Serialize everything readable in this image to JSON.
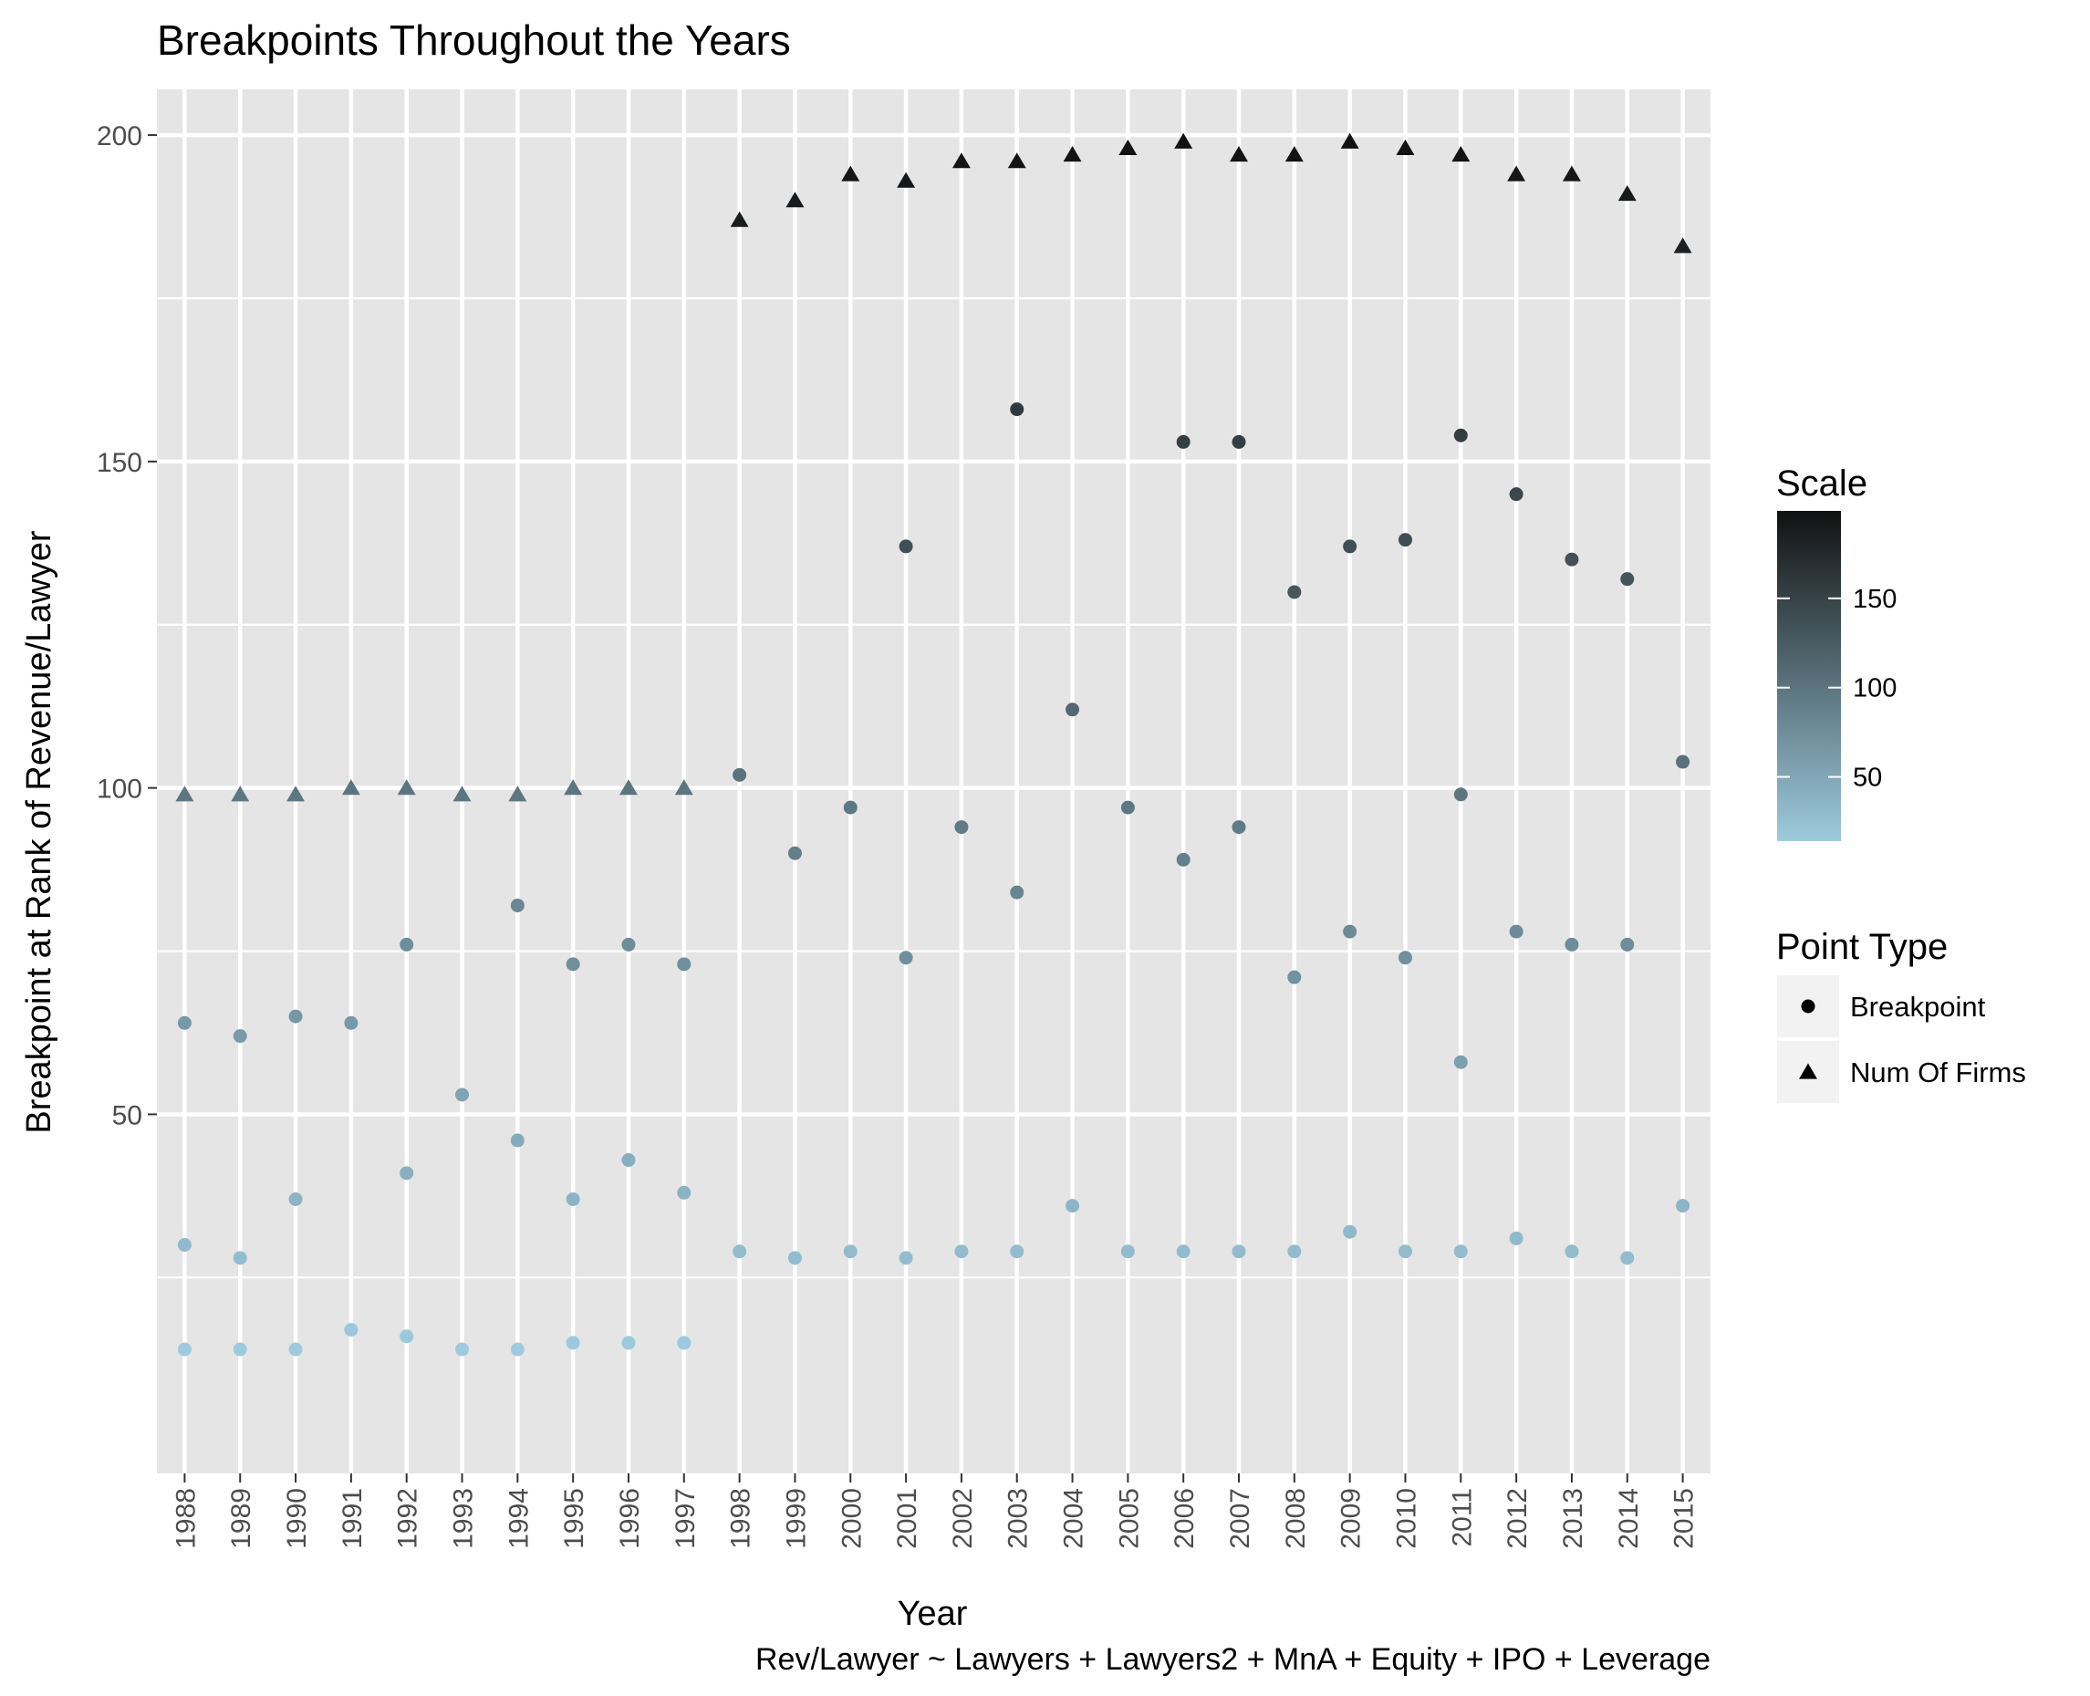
{
  "chart_data": {
    "type": "scatter",
    "title": "Breakpoints Throughout the Years",
    "xlabel": "Year",
    "ylabel": "Breakpoint at Rank of Revenue/Lawyer",
    "caption": "Rev/Lawyer ~ Lawyers + Lawyers2 + MnA + Equity + IPO + Leverage",
    "ylim": [
      -5,
      207
    ],
    "yticks": [
      50,
      100,
      150,
      200
    ],
    "grid": true,
    "legend_position": "right",
    "categories": [
      "1988",
      "1989",
      "1990",
      "1991",
      "1992",
      "1993",
      "1994",
      "1995",
      "1996",
      "1997",
      "1998",
      "1999",
      "2000",
      "2001",
      "2002",
      "2003",
      "2004",
      "2005",
      "2006",
      "2007",
      "2008",
      "2009",
      "2010",
      "2011",
      "2012",
      "2013",
      "2014",
      "2015"
    ],
    "breakpoints": [
      {
        "year": "1988",
        "values": [
          14,
          30,
          64
        ]
      },
      {
        "year": "1989",
        "values": [
          14,
          28,
          62
        ]
      },
      {
        "year": "1990",
        "values": [
          14,
          37,
          65
        ]
      },
      {
        "year": "1991",
        "values": [
          17,
          64
        ]
      },
      {
        "year": "1992",
        "values": [
          16,
          41,
          76
        ]
      },
      {
        "year": "1993",
        "values": [
          14,
          53
        ]
      },
      {
        "year": "1994",
        "values": [
          14,
          46,
          82
        ]
      },
      {
        "year": "1995",
        "values": [
          15,
          37,
          73
        ]
      },
      {
        "year": "1996",
        "values": [
          15,
          43,
          76
        ]
      },
      {
        "year": "1997",
        "values": [
          15,
          38,
          73
        ]
      },
      {
        "year": "1998",
        "values": [
          29,
          102
        ]
      },
      {
        "year": "1999",
        "values": [
          28,
          90
        ]
      },
      {
        "year": "2000",
        "values": [
          29,
          97
        ]
      },
      {
        "year": "2001",
        "values": [
          28,
          74,
          137
        ]
      },
      {
        "year": "2002",
        "values": [
          29,
          94
        ]
      },
      {
        "year": "2003",
        "values": [
          29,
          84,
          158
        ]
      },
      {
        "year": "2004",
        "values": [
          36,
          112
        ]
      },
      {
        "year": "2005",
        "values": [
          29,
          97
        ]
      },
      {
        "year": "2006",
        "values": [
          29,
          89,
          153
        ]
      },
      {
        "year": "2007",
        "values": [
          29,
          94,
          153
        ]
      },
      {
        "year": "2008",
        "values": [
          29,
          71,
          130
        ]
      },
      {
        "year": "2009",
        "values": [
          32,
          78,
          137
        ]
      },
      {
        "year": "2010",
        "values": [
          29,
          74,
          138
        ]
      },
      {
        "year": "2011",
        "values": [
          29,
          58,
          99,
          154
        ]
      },
      {
        "year": "2012",
        "values": [
          31,
          78,
          145
        ]
      },
      {
        "year": "2013",
        "values": [
          29,
          76,
          135
        ]
      },
      {
        "year": "2014",
        "values": [
          28,
          76,
          132
        ]
      },
      {
        "year": "2015",
        "values": [
          36,
          104
        ]
      }
    ],
    "num_of_firms": [
      99,
      99,
      99,
      100,
      100,
      99,
      99,
      100,
      100,
      100,
      187,
      190,
      194,
      193,
      196,
      196,
      197,
      198,
      199,
      197,
      197,
      199,
      198,
      197,
      194,
      194,
      191,
      183
    ],
    "legend": {
      "scale_title": "Scale",
      "scale_ticks": [
        50,
        100,
        150
      ],
      "scale_range": [
        14,
        199
      ],
      "scale_colors": [
        "#9dcbde",
        "#111111"
      ],
      "point_type_title": "Point Type",
      "point_types": [
        {
          "label": "Breakpoint",
          "shape": "circle"
        },
        {
          "label": "Num Of Firms",
          "shape": "triangle"
        }
      ]
    },
    "colors": {
      "panel_bg": "#e5e5e5",
      "grid": "#ffffff",
      "text": "#000000",
      "tick_text": "#4d4d4d"
    }
  }
}
